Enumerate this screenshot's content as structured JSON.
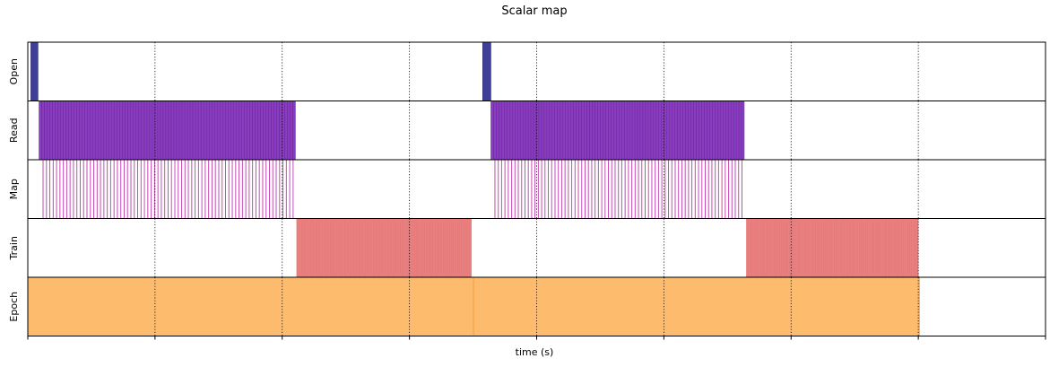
{
  "chart_data": {
    "type": "timeline",
    "title": "Scalar map",
    "xlabel": "time (s)",
    "x_tick_labels_visible": false,
    "grid": "x-dotted",
    "rows": [
      {
        "name": "Open",
        "color": "#3f3f9a"
      },
      {
        "name": "Read",
        "color": "#8a3cc0"
      },
      {
        "name": "Map",
        "color": "#c64ab5"
      },
      {
        "name": "Train",
        "color": "#e05a5a"
      },
      {
        "name": "Epoch",
        "color": "#fdbb6d"
      }
    ],
    "epochs": [
      {
        "open": [
          [
            0.003,
            0.01
          ]
        ],
        "read": {
          "start": 0.011,
          "end": 0.263,
          "count": 95
        },
        "map": {
          "start": 0.015,
          "end": 0.264,
          "count": 75
        },
        "train": {
          "start": 0.264,
          "end": 0.436,
          "count": 110
        },
        "epoch": [
          0.0,
          0.438
        ]
      },
      {
        "open": [
          [
            0.447,
            0.455
          ]
        ],
        "read": {
          "start": 0.455,
          "end": 0.704,
          "count": 95
        },
        "map": {
          "start": 0.459,
          "end": 0.705,
          "count": 75
        },
        "train": {
          "start": 0.706,
          "end": 0.875,
          "count": 110
        },
        "epoch": [
          0.438,
          0.876
        ]
      }
    ],
    "xlim": [
      0,
      1
    ]
  }
}
